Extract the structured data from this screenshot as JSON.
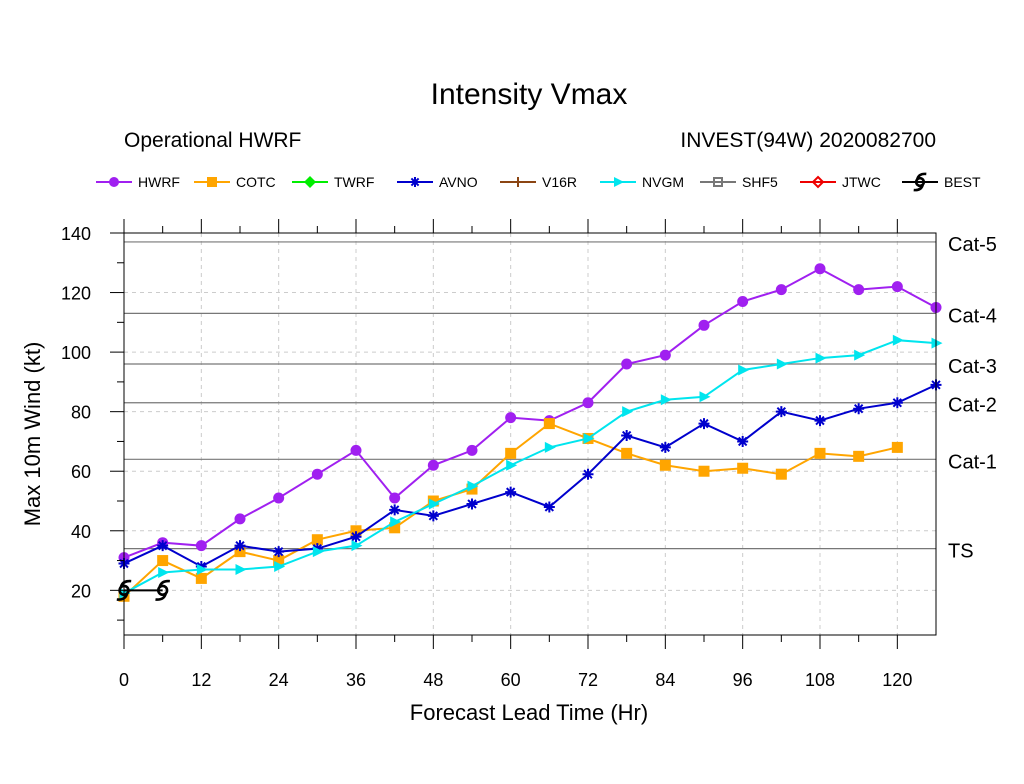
{
  "chart_data": {
    "type": "line",
    "title": "Intensity Vmax",
    "subtitle_left": "Operational HWRF",
    "subtitle_right": "INVEST(94W) 2020082700",
    "xlabel": "Forecast Lead Time (Hr)",
    "ylabel": "Max 10m Wind (kt)",
    "xlim": [
      0,
      126
    ],
    "ylim": [
      5,
      140
    ],
    "x_ticks": [
      0,
      12,
      24,
      36,
      48,
      60,
      72,
      84,
      96,
      108,
      120
    ],
    "y_ticks": [
      20,
      40,
      60,
      80,
      100,
      120,
      140
    ],
    "grid": true,
    "legend_position": "top",
    "thresholds": [
      {
        "label": "TS",
        "value": 34
      },
      {
        "label": "Cat-1",
        "value": 64
      },
      {
        "label": "Cat-2",
        "value": 83
      },
      {
        "label": "Cat-3",
        "value": 96
      },
      {
        "label": "Cat-4",
        "value": 113
      },
      {
        "label": "Cat-5",
        "value": 137
      }
    ],
    "series": [
      {
        "name": "HWRF",
        "color": "#a020f0",
        "marker": "circle",
        "x": [
          0,
          6,
          12,
          18,
          24,
          30,
          36,
          42,
          48,
          54,
          60,
          66,
          72,
          78,
          84,
          90,
          96,
          102,
          108,
          114,
          120,
          126
        ],
        "y": [
          31,
          36,
          35,
          44,
          51,
          59,
          67,
          51,
          62,
          67,
          78,
          77,
          83,
          96,
          99,
          109,
          117,
          121,
          128,
          121,
          122,
          115
        ]
      },
      {
        "name": "COTC",
        "color": "#ffa500",
        "marker": "square",
        "x": [
          0,
          6,
          12,
          18,
          24,
          30,
          36,
          42,
          48,
          54,
          60,
          66,
          72,
          78,
          84,
          90,
          96,
          102,
          108,
          114,
          120
        ],
        "y": [
          18,
          30,
          24,
          33,
          30,
          37,
          40,
          41,
          50,
          54,
          66,
          76,
          71,
          66,
          62,
          60,
          61,
          59,
          66,
          65,
          68
        ]
      },
      {
        "name": "TWRF",
        "color": "#00ee00",
        "marker": "diamond",
        "x": [],
        "y": []
      },
      {
        "name": "AVNO",
        "color": "#0000cd",
        "marker": "asterisk",
        "x": [
          0,
          6,
          12,
          18,
          24,
          30,
          36,
          42,
          48,
          54,
          60,
          66,
          72,
          78,
          84,
          90,
          96,
          102,
          108,
          114,
          120,
          126
        ],
        "y": [
          29,
          35,
          28,
          35,
          33,
          34,
          38,
          47,
          45,
          49,
          53,
          48,
          59,
          72,
          68,
          76,
          70,
          80,
          77,
          81,
          83,
          89
        ]
      },
      {
        "name": "V16R",
        "color": "#8b4513",
        "marker": "plus",
        "x": [],
        "y": []
      },
      {
        "name": "NVGM",
        "color": "#00e5ee",
        "marker": "triangle-right",
        "x": [
          0,
          6,
          12,
          18,
          24,
          30,
          36,
          42,
          48,
          54,
          60,
          66,
          72,
          78,
          84,
          90,
          96,
          102,
          108,
          114,
          120,
          126
        ],
        "y": [
          19,
          26,
          27,
          27,
          28,
          33,
          35,
          43,
          49,
          55,
          62,
          68,
          71,
          80,
          84,
          85,
          94,
          96,
          98,
          99,
          104,
          103
        ]
      },
      {
        "name": "SHF5",
        "color": "#777777",
        "marker": "open-square",
        "x": [],
        "y": []
      },
      {
        "name": "JTWC",
        "color": "#ee0000",
        "marker": "open-diamond",
        "x": [],
        "y": []
      },
      {
        "name": "BEST",
        "color": "#000000",
        "marker": "hurricane",
        "x": [
          0,
          6
        ],
        "y": [
          20,
          20
        ]
      }
    ]
  }
}
